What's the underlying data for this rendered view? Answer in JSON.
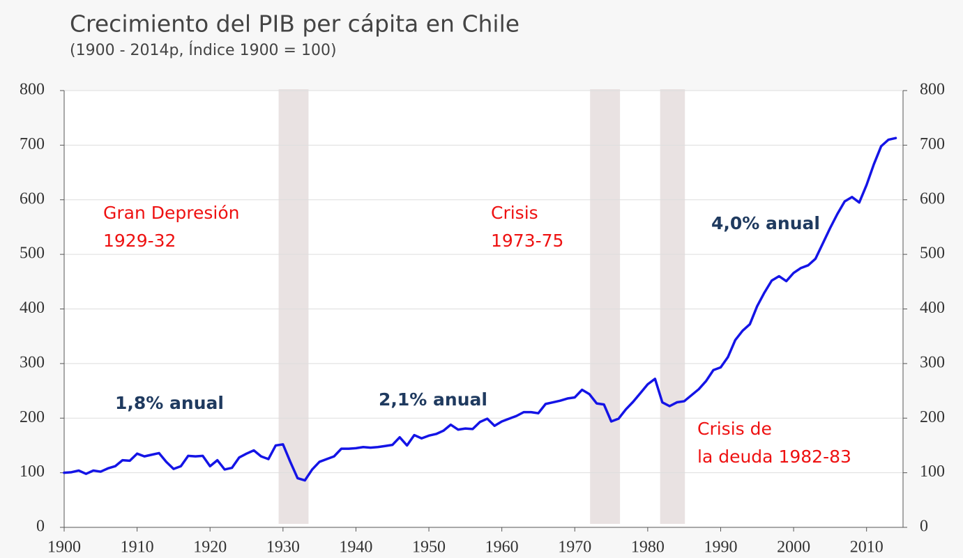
{
  "chart_data": {
    "type": "line",
    "title": "Crecimiento del PIB per cápita en Chile",
    "subtitle": "(1900 - 2014p, Índice 1900 = 100)",
    "x": [
      1900,
      1901,
      1902,
      1903,
      1904,
      1905,
      1906,
      1907,
      1908,
      1909,
      1910,
      1911,
      1912,
      1913,
      1914,
      1915,
      1916,
      1917,
      1918,
      1919,
      1920,
      1921,
      1922,
      1923,
      1924,
      1925,
      1926,
      1927,
      1928,
      1929,
      1930,
      1931,
      1932,
      1933,
      1934,
      1935,
      1936,
      1937,
      1938,
      1939,
      1940,
      1941,
      1942,
      1943,
      1944,
      1945,
      1946,
      1947,
      1948,
      1949,
      1950,
      1951,
      1952,
      1953,
      1954,
      1955,
      1956,
      1957,
      1958,
      1959,
      1960,
      1961,
      1962,
      1963,
      1964,
      1965,
      1966,
      1967,
      1968,
      1969,
      1970,
      1971,
      1972,
      1973,
      1974,
      1975,
      1976,
      1977,
      1978,
      1979,
      1980,
      1981,
      1982,
      1983,
      1984,
      1985,
      1986,
      1987,
      1988,
      1989,
      1990,
      1991,
      1992,
      1993,
      1994,
      1995,
      1996,
      1997,
      1998,
      1999,
      2000,
      2001,
      2002,
      2003,
      2004,
      2005,
      2006,
      2007,
      2008,
      2009,
      2010,
      2011,
      2012,
      2013,
      2014
    ],
    "series": [
      {
        "color": "#1414e6",
        "values": [
          100,
          101,
          104,
          98,
          104,
          102,
          108,
          112,
          123,
          122,
          135,
          130,
          133,
          136,
          120,
          107,
          112,
          131,
          130,
          131,
          112,
          123,
          106,
          109,
          128,
          135,
          141,
          130,
          125,
          150,
          152,
          120,
          90,
          86,
          106,
          120,
          125,
          130,
          144,
          144,
          145,
          147,
          146,
          147,
          149,
          151,
          165,
          150,
          169,
          163,
          168,
          171,
          177,
          188,
          179,
          181,
          180,
          193,
          199,
          186,
          194,
          199,
          204,
          211,
          211,
          209,
          226,
          229,
          232,
          236,
          238,
          252,
          244,
          227,
          225,
          194,
          199,
          216,
          230,
          246,
          262,
          272,
          229,
          222,
          229,
          231,
          242,
          253,
          268,
          288,
          293,
          312,
          343,
          360,
          372,
          405,
          430,
          452,
          460,
          451,
          466,
          475,
          480,
          492,
          520,
          548,
          574,
          597,
          605,
          595,
          627,
          665,
          698,
          710,
          713
        ]
      }
    ],
    "xlim": [
      1900,
      2015
    ],
    "xticks": [
      1900,
      1910,
      1920,
      1930,
      1940,
      1950,
      1960,
      1970,
      1980,
      1990,
      2000,
      2010
    ],
    "ylim": [
      0,
      800
    ],
    "yticks": [
      0,
      100,
      200,
      300,
      400,
      500,
      600,
      700,
      800
    ],
    "y2lim": [
      0,
      800
    ],
    "y2ticks": [
      0,
      100,
      200,
      300,
      400,
      500,
      600,
      700,
      800
    ],
    "grid": true,
    "shaded_periods": [
      {
        "start": 1929.4,
        "end": 1933.5
      },
      {
        "start": 1972.1,
        "end": 1976.2
      },
      {
        "start": 1981.7,
        "end": 1985.1
      }
    ],
    "shade_color": "#e9e2e2",
    "annotations": [
      {
        "lines": [
          "Gran Depresión",
          "1929-32"
        ],
        "color": "#ee1111"
      },
      {
        "lines": [
          "Crisis",
          "1973-75"
        ],
        "color": "#ee1111"
      },
      {
        "lines": [
          "Crisis de",
          "la deuda 1982-83"
        ],
        "color": "#ee1111"
      },
      {
        "lines": [
          "1,8% anual"
        ],
        "color": "#1f3a5f"
      },
      {
        "lines": [
          "2,1% anual"
        ],
        "color": "#1f3a5f"
      },
      {
        "lines": [
          "4,0% anual"
        ],
        "color": "#1f3a5f"
      }
    ]
  }
}
